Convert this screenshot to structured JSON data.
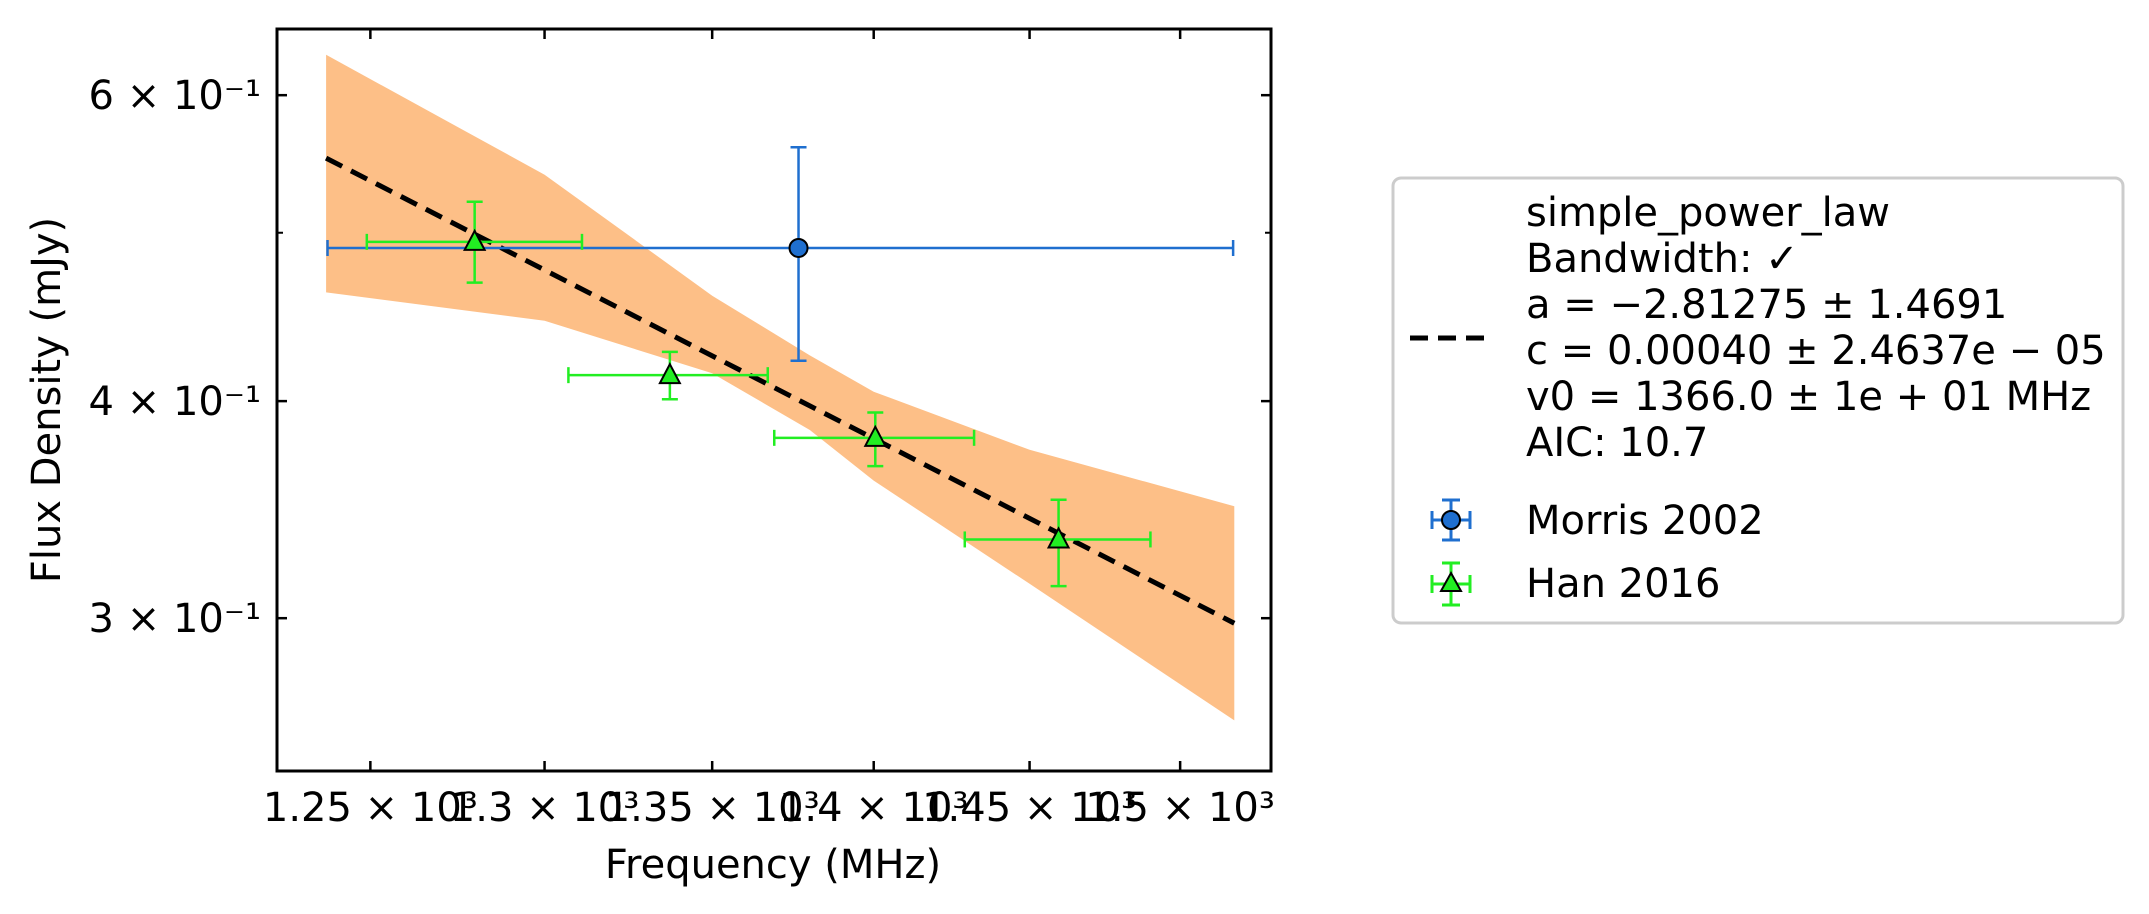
{
  "chart_data": {
    "type": "scatter",
    "xlabel": "Frequency (MHz)",
    "ylabel": "Flux Density (mJy)",
    "x_scale": "log",
    "y_scale": "log",
    "xlim": [
      1224,
      1531
    ],
    "ylim": [
      0.245,
      0.655
    ],
    "grid": false,
    "legend_placement": "outside-right",
    "x_ticks": [
      {
        "value": 1250,
        "label": "1.25 × 10³"
      },
      {
        "value": 1300,
        "label": "1.3 × 10³"
      },
      {
        "value": 1350,
        "label": "1.35 × 10³"
      },
      {
        "value": 1400,
        "label": "1.4 × 10³"
      },
      {
        "value": 1450,
        "label": "1.45 × 10³"
      },
      {
        "value": 1500,
        "label": "1.5 × 10³"
      }
    ],
    "y_ticks": [
      {
        "value": 0.6,
        "label": "6 × 10⁻¹"
      },
      {
        "value": 0.4,
        "label": "4 × 10⁻¹"
      },
      {
        "value": 0.3,
        "label": "3 × 10⁻¹"
      }
    ],
    "y_minor_ticks": [
      0.5
    ],
    "model": {
      "name": "simple_power_law",
      "lines": [
        "simple_power_law",
        "Bandwidth: ✓",
        "a = −2.81275 ± 1.4691",
        "c = 0.00040 ± 2.4637e − 05",
        "v0 = 1366.0 ± 1e + 01 MHz",
        "AIC: 10.7"
      ],
      "color": "#000000",
      "x": [
        1237.6,
        1518.4
      ],
      "y": [
        0.552,
        0.298
      ],
      "band": {
        "color": "#fdbf87",
        "x": [
          1237.6,
          1300,
          1350,
          1380,
          1400,
          1450,
          1518.4
        ],
        "upper": [
          0.633,
          0.54,
          0.46,
          0.425,
          0.405,
          0.375,
          0.348
        ],
        "lower": [
          0.462,
          0.445,
          0.415,
          0.385,
          0.36,
          0.314,
          0.262
        ]
      }
    },
    "series": [
      {
        "name": "Morris 2002",
        "marker": "circle",
        "color": "#1f6fcf",
        "points": [
          {
            "x": 1376.5,
            "y": 0.49,
            "xerr": [
              1238,
              1518
            ],
            "yerr": [
              0.422,
              0.56
            ]
          }
        ]
      },
      {
        "name": "Han 2016",
        "marker": "triangle",
        "color": "#22ee22",
        "points": [
          {
            "x": 1279.7,
            "y": 0.494,
            "xerr": [
              1249,
              1311
            ],
            "yerr": [
              0.468,
              0.521
            ]
          },
          {
            "x": 1337.2,
            "y": 0.414,
            "xerr": [
              1307,
              1367
            ],
            "yerr": [
              0.401,
              0.427
            ]
          },
          {
            "x": 1400.5,
            "y": 0.381,
            "xerr": [
              1369,
              1432
            ],
            "yerr": [
              0.367,
              0.394
            ]
          },
          {
            "x": 1459.5,
            "y": 0.333,
            "xerr": [
              1429,
              1490
            ],
            "yerr": [
              0.313,
              0.351
            ]
          }
        ]
      }
    ]
  }
}
